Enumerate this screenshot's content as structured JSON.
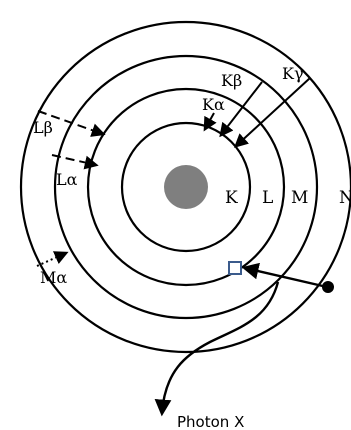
{
  "shells": {
    "k": "K",
    "l": "L",
    "m": "M",
    "n": "N"
  },
  "transitions": {
    "k_alpha": "Kα",
    "k_beta": "Kβ",
    "k_gamma": "Kγ",
    "l_alpha": "Lα",
    "l_beta": "Lβ",
    "m_alpha": "Mα"
  },
  "photon_label": "Photon X",
  "colors": {
    "nucleus": "#7f7f7f",
    "lines": "#000000",
    "vacancy": "#3b5b8c"
  }
}
